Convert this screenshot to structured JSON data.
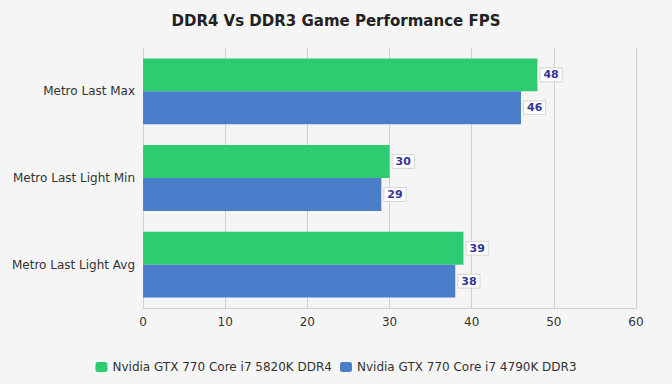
{
  "chart_data": {
    "type": "bar",
    "orientation": "horizontal",
    "title": "DDR4 Vs DDR3 Game Performance FPS",
    "categories": [
      "Metro Last Max",
      "Metro Last Light Min",
      "Metro Last Light Avg"
    ],
    "series": [
      {
        "name": "Nvidia GTX 770 Core i7 5820K DDR4",
        "color": "#2ecc71",
        "values": [
          48,
          30,
          39
        ]
      },
      {
        "name": "Nvidia GTX 770 Core i7 4790K DDR3",
        "color": "#4a7ecb",
        "values": [
          46,
          29,
          38
        ]
      }
    ],
    "xlim": [
      0,
      60
    ],
    "xticks": [
      0,
      10,
      20,
      30,
      40,
      50,
      60
    ],
    "grid": true,
    "legend": "bottom",
    "data_labels": true
  }
}
